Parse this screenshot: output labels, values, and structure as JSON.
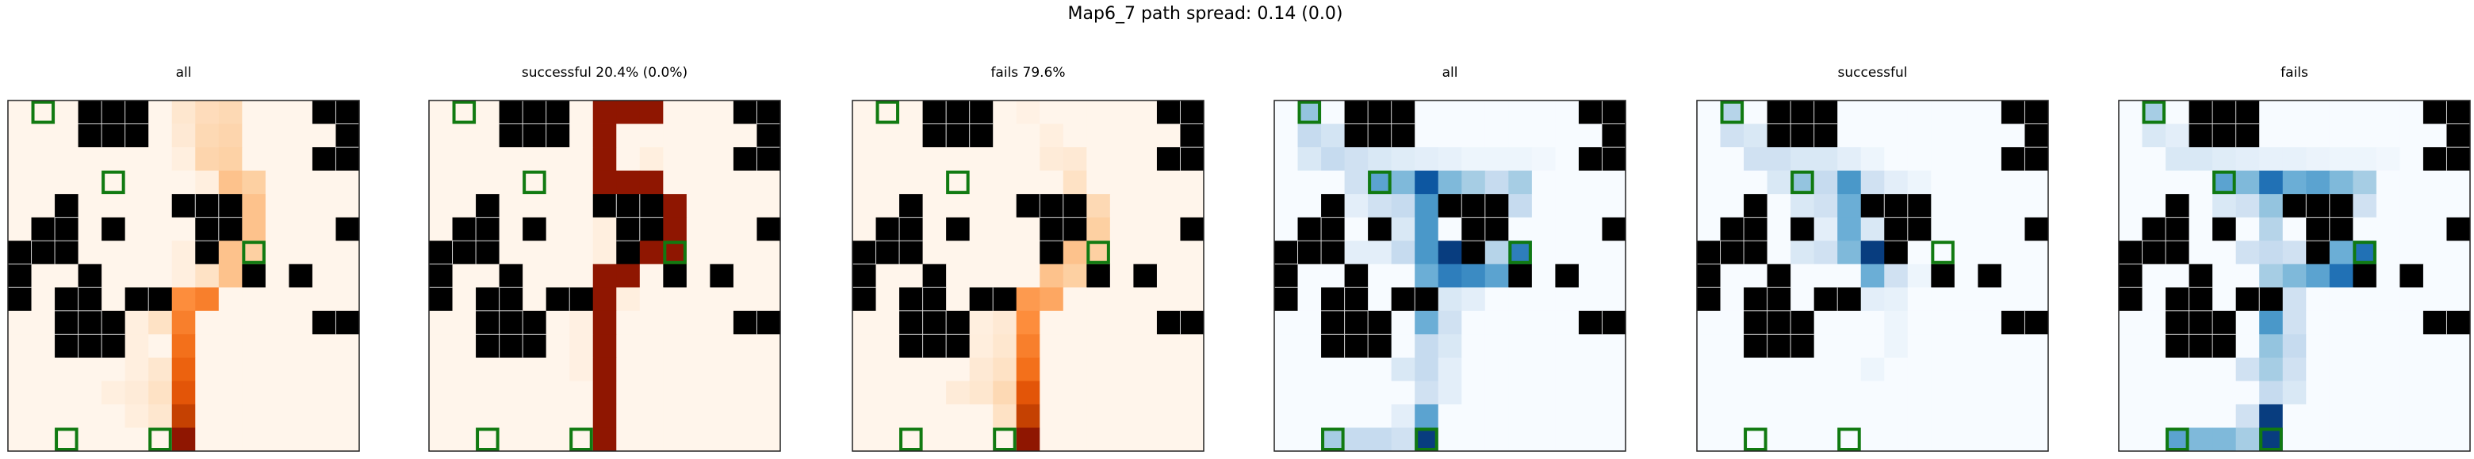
{
  "figure": {
    "title": "Map6_7 path spread: 0.14 (0.0)"
  },
  "colors": {
    "wall": "#000000",
    "cell_border": "#d9d9d9",
    "goal_marker": "#117a11",
    "frame": "#222222",
    "orange_scale": [
      "#fff5eb",
      "#fee6ce",
      "#fdd0a2",
      "#fdae6b",
      "#fd8d3c",
      "#f16913",
      "#d94801",
      "#a63603",
      "#7f0000"
    ],
    "blue_scale": [
      "#f7fbff",
      "#deebf7",
      "#c6dbef",
      "#9ecae1",
      "#6baed6",
      "#4292c6",
      "#2171b5",
      "#08519c",
      "#08306b"
    ]
  },
  "chart_data": [
    {
      "type": "heatmap",
      "title": "all",
      "colormap": "orange",
      "grid_size": [
        15,
        15
      ],
      "grid": "wall-map",
      "intensity_key": "all_orange"
    },
    {
      "type": "heatmap",
      "title": "successful 20.4% (0.0%)",
      "colormap": "orange",
      "grid_size": [
        15,
        15
      ],
      "grid": "wall-map",
      "intensity_key": "success_orange"
    },
    {
      "type": "heatmap",
      "title": "fails 79.6%",
      "colormap": "orange",
      "grid_size": [
        15,
        15
      ],
      "grid": "wall-map",
      "intensity_key": "fails_orange"
    },
    {
      "type": "heatmap",
      "title": "all",
      "colormap": "blue",
      "grid_size": [
        15,
        15
      ],
      "grid": "wall-map",
      "intensity_key": "all_blue"
    },
    {
      "type": "heatmap",
      "title": "successful",
      "colormap": "blue",
      "grid_size": [
        15,
        15
      ],
      "grid": "wall-map",
      "intensity_key": "success_blue"
    },
    {
      "type": "heatmap",
      "title": "fails",
      "colormap": "blue",
      "grid_size": [
        15,
        15
      ],
      "grid": "wall-map",
      "intensity_key": "fails_blue"
    }
  ],
  "map": {
    "walls": [
      [
        0,
        3
      ],
      [
        0,
        4
      ],
      [
        0,
        5
      ],
      [
        0,
        13
      ],
      [
        0,
        14
      ],
      [
        1,
        3
      ],
      [
        1,
        4
      ],
      [
        1,
        5
      ],
      [
        1,
        14
      ],
      [
        2,
        13
      ],
      [
        2,
        14
      ],
      [
        4,
        2
      ],
      [
        4,
        7
      ],
      [
        4,
        8
      ],
      [
        4,
        9
      ],
      [
        5,
        1
      ],
      [
        5,
        2
      ],
      [
        5,
        4
      ],
      [
        5,
        8
      ],
      [
        5,
        9
      ],
      [
        5,
        14
      ],
      [
        6,
        0
      ],
      [
        6,
        1
      ],
      [
        6,
        2
      ],
      [
        6,
        8
      ],
      [
        7,
        0
      ],
      [
        7,
        3
      ],
      [
        7,
        10
      ],
      [
        7,
        12
      ],
      [
        8,
        0
      ],
      [
        8,
        2
      ],
      [
        8,
        3
      ],
      [
        8,
        5
      ],
      [
        8,
        6
      ],
      [
        9,
        2
      ],
      [
        9,
        3
      ],
      [
        9,
        4
      ],
      [
        9,
        13
      ],
      [
        9,
        14
      ],
      [
        10,
        2
      ],
      [
        10,
        3
      ],
      [
        10,
        4
      ]
    ],
    "markers": [
      [
        0,
        1
      ],
      [
        3,
        4
      ],
      [
        6,
        10
      ],
      [
        14,
        2
      ],
      [
        14,
        6
      ]
    ]
  },
  "intensity": {
    "all_orange": [
      [
        0,
        7,
        0.12
      ],
      [
        0,
        8,
        0.18
      ],
      [
        0,
        9,
        0.2
      ],
      [
        1,
        7,
        0.1
      ],
      [
        1,
        8,
        0.2
      ],
      [
        1,
        9,
        0.22
      ],
      [
        2,
        8,
        0.22
      ],
      [
        2,
        9,
        0.24
      ],
      [
        3,
        9,
        0.3
      ],
      [
        3,
        10,
        0.25
      ],
      [
        4,
        10,
        0.3
      ],
      [
        5,
        10,
        0.3
      ],
      [
        6,
        9,
        0.3
      ],
      [
        6,
        10,
        0.25
      ],
      [
        7,
        9,
        0.3
      ],
      [
        7,
        8,
        0.15
      ],
      [
        8,
        7,
        0.5
      ],
      [
        8,
        8,
        0.55
      ],
      [
        9,
        7,
        0.55
      ],
      [
        9,
        6,
        0.15
      ],
      [
        10,
        7,
        0.6
      ],
      [
        11,
        7,
        0.65
      ],
      [
        11,
        6,
        0.12
      ],
      [
        12,
        7,
        0.7
      ],
      [
        12,
        6,
        0.15
      ],
      [
        13,
        7,
        0.8
      ],
      [
        13,
        6,
        0.12
      ],
      [
        14,
        7,
        0.95
      ],
      [
        9,
        5,
        0.05
      ],
      [
        10,
        5,
        0.05
      ],
      [
        11,
        5,
        0.05
      ],
      [
        12,
        5,
        0.08
      ],
      [
        12,
        4,
        0.05
      ],
      [
        13,
        5,
        0.06
      ],
      [
        2,
        7,
        0.05
      ],
      [
        3,
        8,
        0.05
      ],
      [
        6,
        7,
        0.05
      ],
      [
        7,
        7,
        0.05
      ]
    ],
    "success_orange": [
      [
        0,
        7,
        0.95
      ],
      [
        0,
        8,
        0.95
      ],
      [
        0,
        9,
        0.95
      ],
      [
        1,
        7,
        0.95
      ],
      [
        2,
        7,
        0.95
      ],
      [
        3,
        7,
        0.95
      ],
      [
        3,
        8,
        0.95
      ],
      [
        4,
        10,
        0.95
      ],
      [
        5,
        10,
        0.95
      ],
      [
        6,
        9,
        0.95
      ],
      [
        6,
        10,
        0.95
      ],
      [
        7,
        7,
        0.95
      ],
      [
        7,
        8,
        0.95
      ],
      [
        8,
        7,
        0.95
      ],
      [
        9,
        7,
        0.95
      ],
      [
        10,
        7,
        0.95
      ],
      [
        11,
        7,
        0.95
      ],
      [
        12,
        7,
        0.95
      ],
      [
        13,
        7,
        0.95
      ],
      [
        14,
        7,
        0.95
      ],
      [
        3,
        9,
        0.95
      ],
      [
        2,
        9,
        0.05
      ],
      [
        5,
        7,
        0.05
      ],
      [
        6,
        7,
        0.05
      ],
      [
        8,
        8,
        0.05
      ],
      [
        9,
        6,
        0.04
      ],
      [
        10,
        6,
        0.04
      ],
      [
        11,
        6,
        0.04
      ]
    ],
    "fails_orange": [
      [
        0,
        7,
        0.03
      ],
      [
        1,
        8,
        0.05
      ],
      [
        2,
        8,
        0.08
      ],
      [
        2,
        9,
        0.1
      ],
      [
        3,
        9,
        0.15
      ],
      [
        4,
        10,
        0.2
      ],
      [
        5,
        10,
        0.25
      ],
      [
        6,
        9,
        0.3
      ],
      [
        6,
        10,
        0.25
      ],
      [
        7,
        8,
        0.3
      ],
      [
        7,
        9,
        0.25
      ],
      [
        8,
        7,
        0.45
      ],
      [
        8,
        8,
        0.4
      ],
      [
        9,
        7,
        0.5
      ],
      [
        9,
        6,
        0.1
      ],
      [
        10,
        7,
        0.55
      ],
      [
        10,
        6,
        0.12
      ],
      [
        11,
        7,
        0.6
      ],
      [
        11,
        6,
        0.15
      ],
      [
        11,
        5,
        0.1
      ],
      [
        12,
        7,
        0.7
      ],
      [
        12,
        6,
        0.2
      ],
      [
        12,
        5,
        0.12
      ],
      [
        12,
        4,
        0.08
      ],
      [
        13,
        7,
        0.8
      ],
      [
        13,
        6,
        0.15
      ],
      [
        14,
        7,
        0.95
      ],
      [
        9,
        5,
        0.05
      ],
      [
        10,
        5,
        0.06
      ]
    ],
    "all_blue": [
      [
        0,
        1,
        0.4
      ],
      [
        1,
        1,
        0.25
      ],
      [
        1,
        2,
        0.18
      ],
      [
        2,
        1,
        0.15
      ],
      [
        2,
        2,
        0.25
      ],
      [
        2,
        3,
        0.2
      ],
      [
        2,
        4,
        0.15
      ],
      [
        2,
        5,
        0.12
      ],
      [
        2,
        6,
        0.1
      ],
      [
        2,
        7,
        0.08
      ],
      [
        2,
        8,
        0.05
      ],
      [
        2,
        9,
        0.05
      ],
      [
        2,
        10,
        0.05
      ],
      [
        2,
        11,
        0.03
      ],
      [
        3,
        3,
        0.2
      ],
      [
        3,
        4,
        0.55
      ],
      [
        3,
        5,
        0.45
      ],
      [
        3,
        6,
        0.85
      ],
      [
        3,
        7,
        0.45
      ],
      [
        3,
        8,
        0.35
      ],
      [
        3,
        9,
        0.25
      ],
      [
        3,
        10,
        0.35
      ],
      [
        4,
        3,
        0.1
      ],
      [
        4,
        4,
        0.2
      ],
      [
        4,
        5,
        0.25
      ],
      [
        4,
        6,
        0.6
      ],
      [
        4,
        10,
        0.25
      ],
      [
        5,
        5,
        0.15
      ],
      [
        5,
        6,
        0.6
      ],
      [
        6,
        3,
        0.1
      ],
      [
        6,
        4,
        0.1
      ],
      [
        6,
        5,
        0.25
      ],
      [
        6,
        6,
        0.6
      ],
      [
        6,
        7,
        0.95
      ],
      [
        6,
        9,
        0.3
      ],
      [
        6,
        10,
        0.7
      ],
      [
        7,
        6,
        0.5
      ],
      [
        7,
        7,
        0.7
      ],
      [
        7,
        8,
        0.65
      ],
      [
        7,
        9,
        0.55
      ],
      [
        8,
        6,
        0.45
      ],
      [
        8,
        7,
        0.15
      ],
      [
        8,
        8,
        0.1
      ],
      [
        9,
        6,
        0.5
      ],
      [
        9,
        7,
        0.2
      ],
      [
        10,
        6,
        0.25
      ],
      [
        10,
        7,
        0.15
      ],
      [
        11,
        5,
        0.15
      ],
      [
        11,
        6,
        0.25
      ],
      [
        11,
        7,
        0.1
      ],
      [
        12,
        6,
        0.2
      ],
      [
        12,
        7,
        0.1
      ],
      [
        13,
        6,
        0.55
      ],
      [
        13,
        5,
        0.1
      ],
      [
        14,
        2,
        0.35
      ],
      [
        14,
        3,
        0.25
      ],
      [
        14,
        4,
        0.25
      ],
      [
        14,
        5,
        0.2
      ],
      [
        14,
        6,
        0.95
      ]
    ],
    "success_blue": [
      [
        0,
        1,
        0.3
      ],
      [
        1,
        1,
        0.2
      ],
      [
        1,
        2,
        0.15
      ],
      [
        2,
        2,
        0.2
      ],
      [
        2,
        3,
        0.2
      ],
      [
        2,
        4,
        0.15
      ],
      [
        2,
        5,
        0.15
      ],
      [
        2,
        6,
        0.1
      ],
      [
        2,
        7,
        0.05
      ],
      [
        3,
        3,
        0.15
      ],
      [
        3,
        4,
        0.4
      ],
      [
        3,
        5,
        0.25
      ],
      [
        3,
        6,
        0.6
      ],
      [
        3,
        7,
        0.2
      ],
      [
        3,
        8,
        0.1
      ],
      [
        3,
        9,
        0.05
      ],
      [
        4,
        4,
        0.15
      ],
      [
        4,
        5,
        0.2
      ],
      [
        4,
        6,
        0.5
      ],
      [
        5,
        5,
        0.1
      ],
      [
        5,
        6,
        0.5
      ],
      [
        5,
        7,
        0.15
      ],
      [
        6,
        4,
        0.15
      ],
      [
        6,
        5,
        0.2
      ],
      [
        6,
        6,
        0.45
      ],
      [
        6,
        7,
        0.95
      ],
      [
        6,
        8,
        0.5
      ],
      [
        7,
        7,
        0.5
      ],
      [
        7,
        8,
        0.2
      ],
      [
        7,
        9,
        0.05
      ],
      [
        8,
        7,
        0.1
      ],
      [
        8,
        8,
        0.08
      ],
      [
        9,
        8,
        0.05
      ],
      [
        10,
        8,
        0.05
      ],
      [
        11,
        7,
        0.05
      ]
    ],
    "fails_blue": [
      [
        0,
        1,
        0.35
      ],
      [
        1,
        1,
        0.15
      ],
      [
        1,
        2,
        0.1
      ],
      [
        2,
        2,
        0.15
      ],
      [
        2,
        3,
        0.15
      ],
      [
        2,
        4,
        0.12
      ],
      [
        2,
        5,
        0.1
      ],
      [
        2,
        6,
        0.08
      ],
      [
        2,
        7,
        0.08
      ],
      [
        2,
        8,
        0.06
      ],
      [
        2,
        9,
        0.05
      ],
      [
        2,
        10,
        0.05
      ],
      [
        2,
        11,
        0.03
      ],
      [
        3,
        4,
        0.55
      ],
      [
        3,
        5,
        0.45
      ],
      [
        3,
        6,
        0.75
      ],
      [
        3,
        7,
        0.5
      ],
      [
        3,
        8,
        0.55
      ],
      [
        3,
        9,
        0.45
      ],
      [
        3,
        10,
        0.35
      ],
      [
        4,
        4,
        0.15
      ],
      [
        4,
        5,
        0.2
      ],
      [
        4,
        6,
        0.4
      ],
      [
        4,
        10,
        0.2
      ],
      [
        5,
        6,
        0.3
      ],
      [
        6,
        5,
        0.2
      ],
      [
        6,
        6,
        0.25
      ],
      [
        6,
        7,
        0.2
      ],
      [
        6,
        9,
        0.5
      ],
      [
        6,
        10,
        0.75
      ],
      [
        7,
        6,
        0.35
      ],
      [
        7,
        7,
        0.45
      ],
      [
        7,
        8,
        0.55
      ],
      [
        7,
        9,
        0.75
      ],
      [
        8,
        6,
        0.4
      ],
      [
        8,
        7,
        0.2
      ],
      [
        9,
        6,
        0.6
      ],
      [
        9,
        7,
        0.2
      ],
      [
        10,
        6,
        0.4
      ],
      [
        10,
        7,
        0.25
      ],
      [
        11,
        5,
        0.2
      ],
      [
        11,
        6,
        0.35
      ],
      [
        11,
        7,
        0.2
      ],
      [
        12,
        6,
        0.25
      ],
      [
        12,
        7,
        0.15
      ],
      [
        13,
        6,
        0.95
      ],
      [
        13,
        5,
        0.2
      ],
      [
        14,
        2,
        0.55
      ],
      [
        14,
        3,
        0.45
      ],
      [
        14,
        4,
        0.45
      ],
      [
        14,
        5,
        0.35
      ],
      [
        14,
        6,
        0.95
      ]
    ]
  }
}
